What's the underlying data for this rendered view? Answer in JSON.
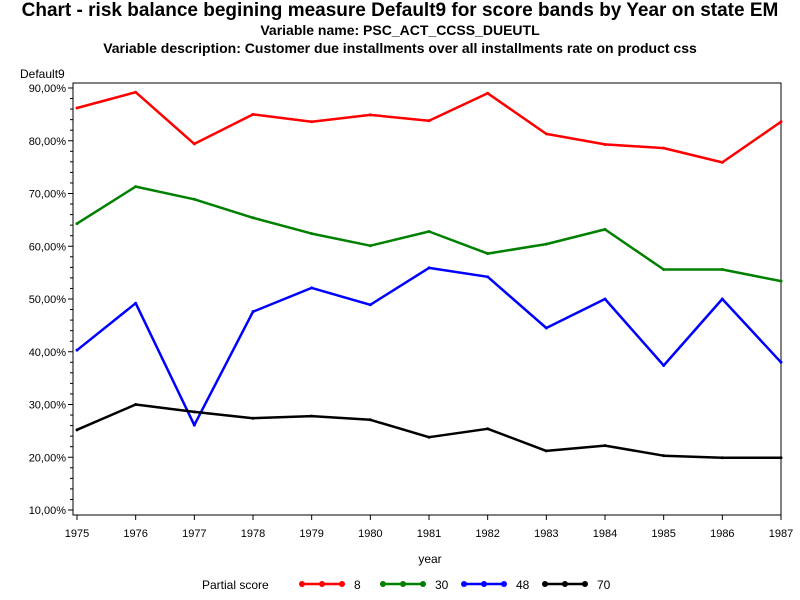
{
  "titles": {
    "main": "Chart - risk balance begining measure Default9 for score bands by Year on state EM",
    "variable_name": "Variable name: PSC_ACT_CCSS_DUEUTL",
    "variable_description": "Variable description: Customer due installments over all installments rate on product css"
  },
  "chart_data": {
    "type": "line",
    "title": "Chart - risk balance begining measure Default9 for score bands by Year on state EM",
    "xlabel": "year",
    "ylabel": "Default9",
    "x": [
      "1975",
      "1976",
      "1977",
      "1978",
      "1979",
      "1980",
      "1981",
      "1982",
      "1983",
      "1984",
      "1985",
      "1986",
      "1987"
    ],
    "ylim": [
      10,
      90
    ],
    "yticks": [
      10,
      20,
      30,
      40,
      50,
      60,
      70,
      80,
      90
    ],
    "ytick_labels": [
      "10,00%",
      "20,00%",
      "30,00%",
      "40,00%",
      "50,00%",
      "60,00%",
      "70,00%",
      "80,00%",
      "90,00%"
    ],
    "grid": false,
    "legend": {
      "title": "Partial score",
      "placement": "bottom"
    },
    "series": [
      {
        "name": "8",
        "color": "#ff0000",
        "values": [
          86.2,
          89.2,
          79.4,
          85.0,
          83.6,
          84.9,
          83.8,
          89.0,
          81.3,
          79.3,
          78.6,
          75.9,
          83.6
        ]
      },
      {
        "name": "30",
        "color": "#008000",
        "values": [
          64.3,
          71.3,
          68.9,
          65.4,
          62.4,
          60.1,
          62.8,
          58.6,
          60.4,
          63.2,
          55.6,
          55.6,
          53.4
        ]
      },
      {
        "name": "48",
        "color": "#0000ff",
        "values": [
          40.3,
          49.2,
          26.1,
          47.6,
          52.1,
          48.9,
          55.9,
          54.2,
          44.5,
          50.0,
          37.4,
          50.0,
          38.0
        ]
      },
      {
        "name": "70",
        "color": "#000000",
        "values": [
          25.2,
          30.0,
          28.6,
          27.4,
          27.8,
          27.1,
          23.8,
          25.4,
          21.2,
          22.2,
          20.3,
          19.9,
          19.9
        ]
      }
    ]
  }
}
